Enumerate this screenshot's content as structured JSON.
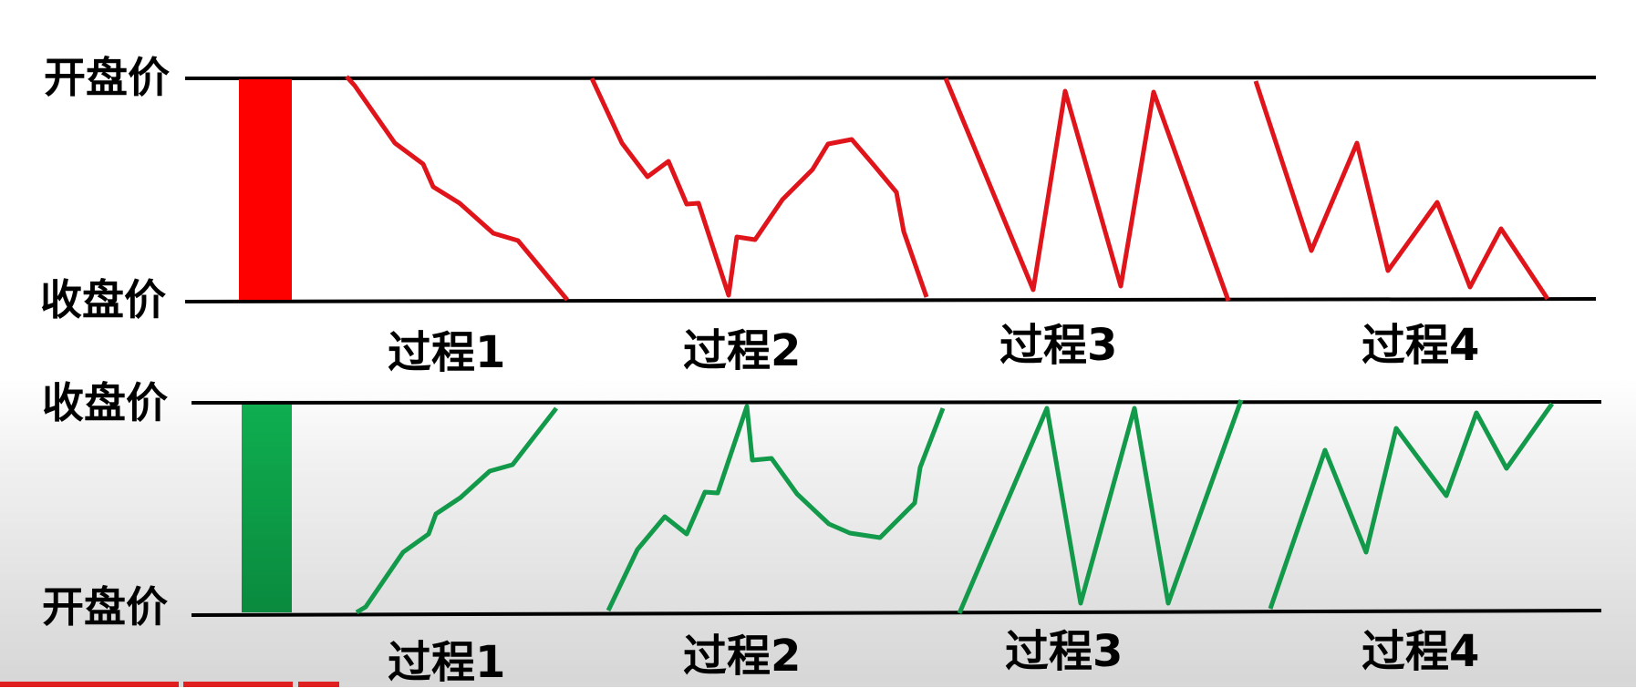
{
  "top_panel": {
    "upper_label": "开盘价",
    "lower_label": "收盘价",
    "candle_color": "#ff0000",
    "line_color": "#e0141b",
    "process_labels": [
      "过程1",
      "过程2",
      "过程3",
      "过程4"
    ]
  },
  "bottom_panel": {
    "upper_label": "收盘价",
    "lower_label": "开盘价",
    "candle_color": "#0b9444",
    "line_color": "#12994a",
    "process_labels": [
      "过程1",
      "过程2",
      "过程3",
      "过程4"
    ]
  },
  "video_progress": {
    "played_color": "#e02020",
    "buffered_color": "#d8d8d8"
  }
}
